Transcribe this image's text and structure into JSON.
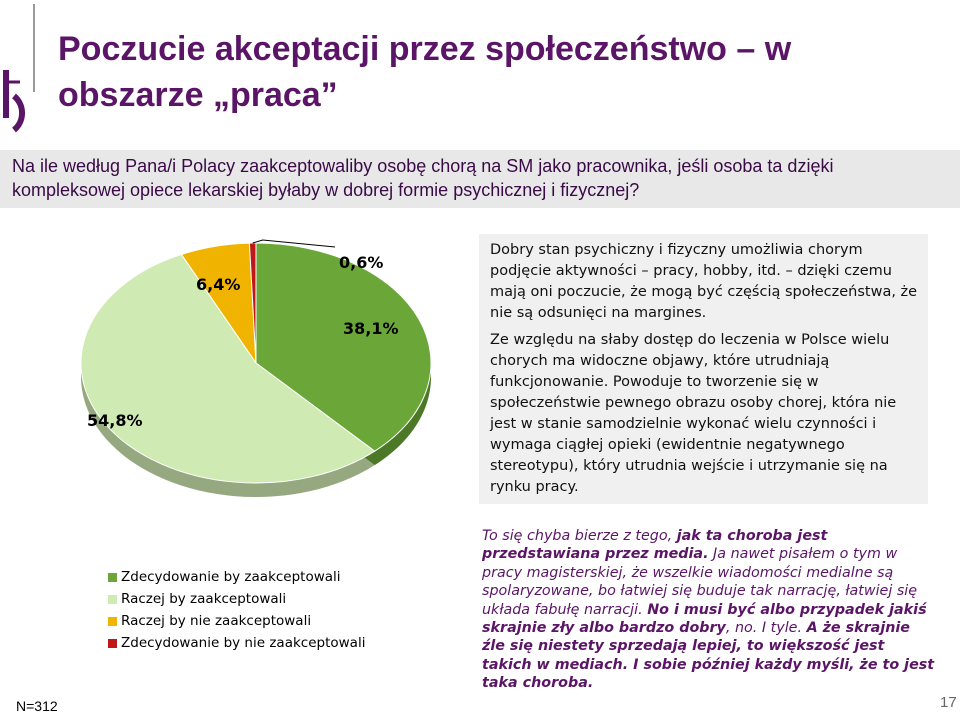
{
  "header": {
    "title": "Poczucie akceptacji przez społeczeństwo – w obszarze „praca”"
  },
  "question": "Na ile według Pana/i Polacy zaakceptowaliby osobę chorą na SM jako pracownika, jeśli osoba ta dzięki kompleksowej opiece lekarskiej byłaby w dobrej formie psychicznej i fizycznej?",
  "chart_data": {
    "type": "pie",
    "title": "",
    "categories": [
      "Zdecydowanie by zaakceptowali",
      "Raczej by zaakceptowali",
      "Raczej by nie zaakceptowali",
      "Zdecydowanie by nie zaakceptowali"
    ],
    "values": [
      38.1,
      54.8,
      6.4,
      0.6
    ],
    "value_labels": [
      "38,1%",
      "54,8%",
      "6,4%",
      "0,6%"
    ],
    "colors": [
      "#6aa738",
      "#cfeab2",
      "#f0b400",
      "#c01818"
    ],
    "legend_position": "bottom-left"
  },
  "legend": {
    "items": [
      {
        "label": "Zdecydowanie by zaakceptowali",
        "color": "#6aa738"
      },
      {
        "label": "Raczej by zaakceptowali",
        "color": "#cfeab2"
      },
      {
        "label": "Raczej by nie zaakceptowali",
        "color": "#f0b400"
      },
      {
        "label": "Zdecydowanie by nie zaakceptowali",
        "color": "#c01818"
      }
    ]
  },
  "info_box": {
    "paragraph1": "Dobry stan psychiczny i fizyczny umożliwia chorym podjęcie aktywności – pracy, hobby, itd. – dzięki czemu mają oni poczucie, że mogą być częścią społeczeństwa, że nie są odsunięci na margines.",
    "paragraph2": "Ze względu na słaby dostęp do leczenia w Polsce wielu chorych ma widoczne objawy, które utrudniają funkcjonowanie. Powoduje to tworzenie się w społeczeństwie pewnego obrazu osoby chorej, która nie jest w stanie samodzielnie wykonać wielu czynności i wymaga ciągłej opieki (ewidentnie negatywnego stereotypu), który utrudnia wejście i utrzymanie się na rynku pracy."
  },
  "quote": {
    "t1": "To się chyba bierze z tego, ",
    "t2": "jak ta choroba jest przedstawiana przez media.",
    "t3": " Ja nawet pisałem o tym w pracy magisterskiej, że wszelkie wiadomości medialne są spolaryzowane, bo łatwiej się buduje tak narrację, łatwiej się układa fabułę narracji. ",
    "t4": "No i musi być albo przypadek jakiś skrajnie zły albo bardzo dobry",
    "t5": ", no. I tyle. ",
    "t6": "A że skrajnie źle się niestety sprzedają lepiej, to większość jest takich w mediach. I sobie później każdy myśli, że to jest taka choroba."
  },
  "footer": {
    "sample": "N=312",
    "page_number": "17"
  }
}
